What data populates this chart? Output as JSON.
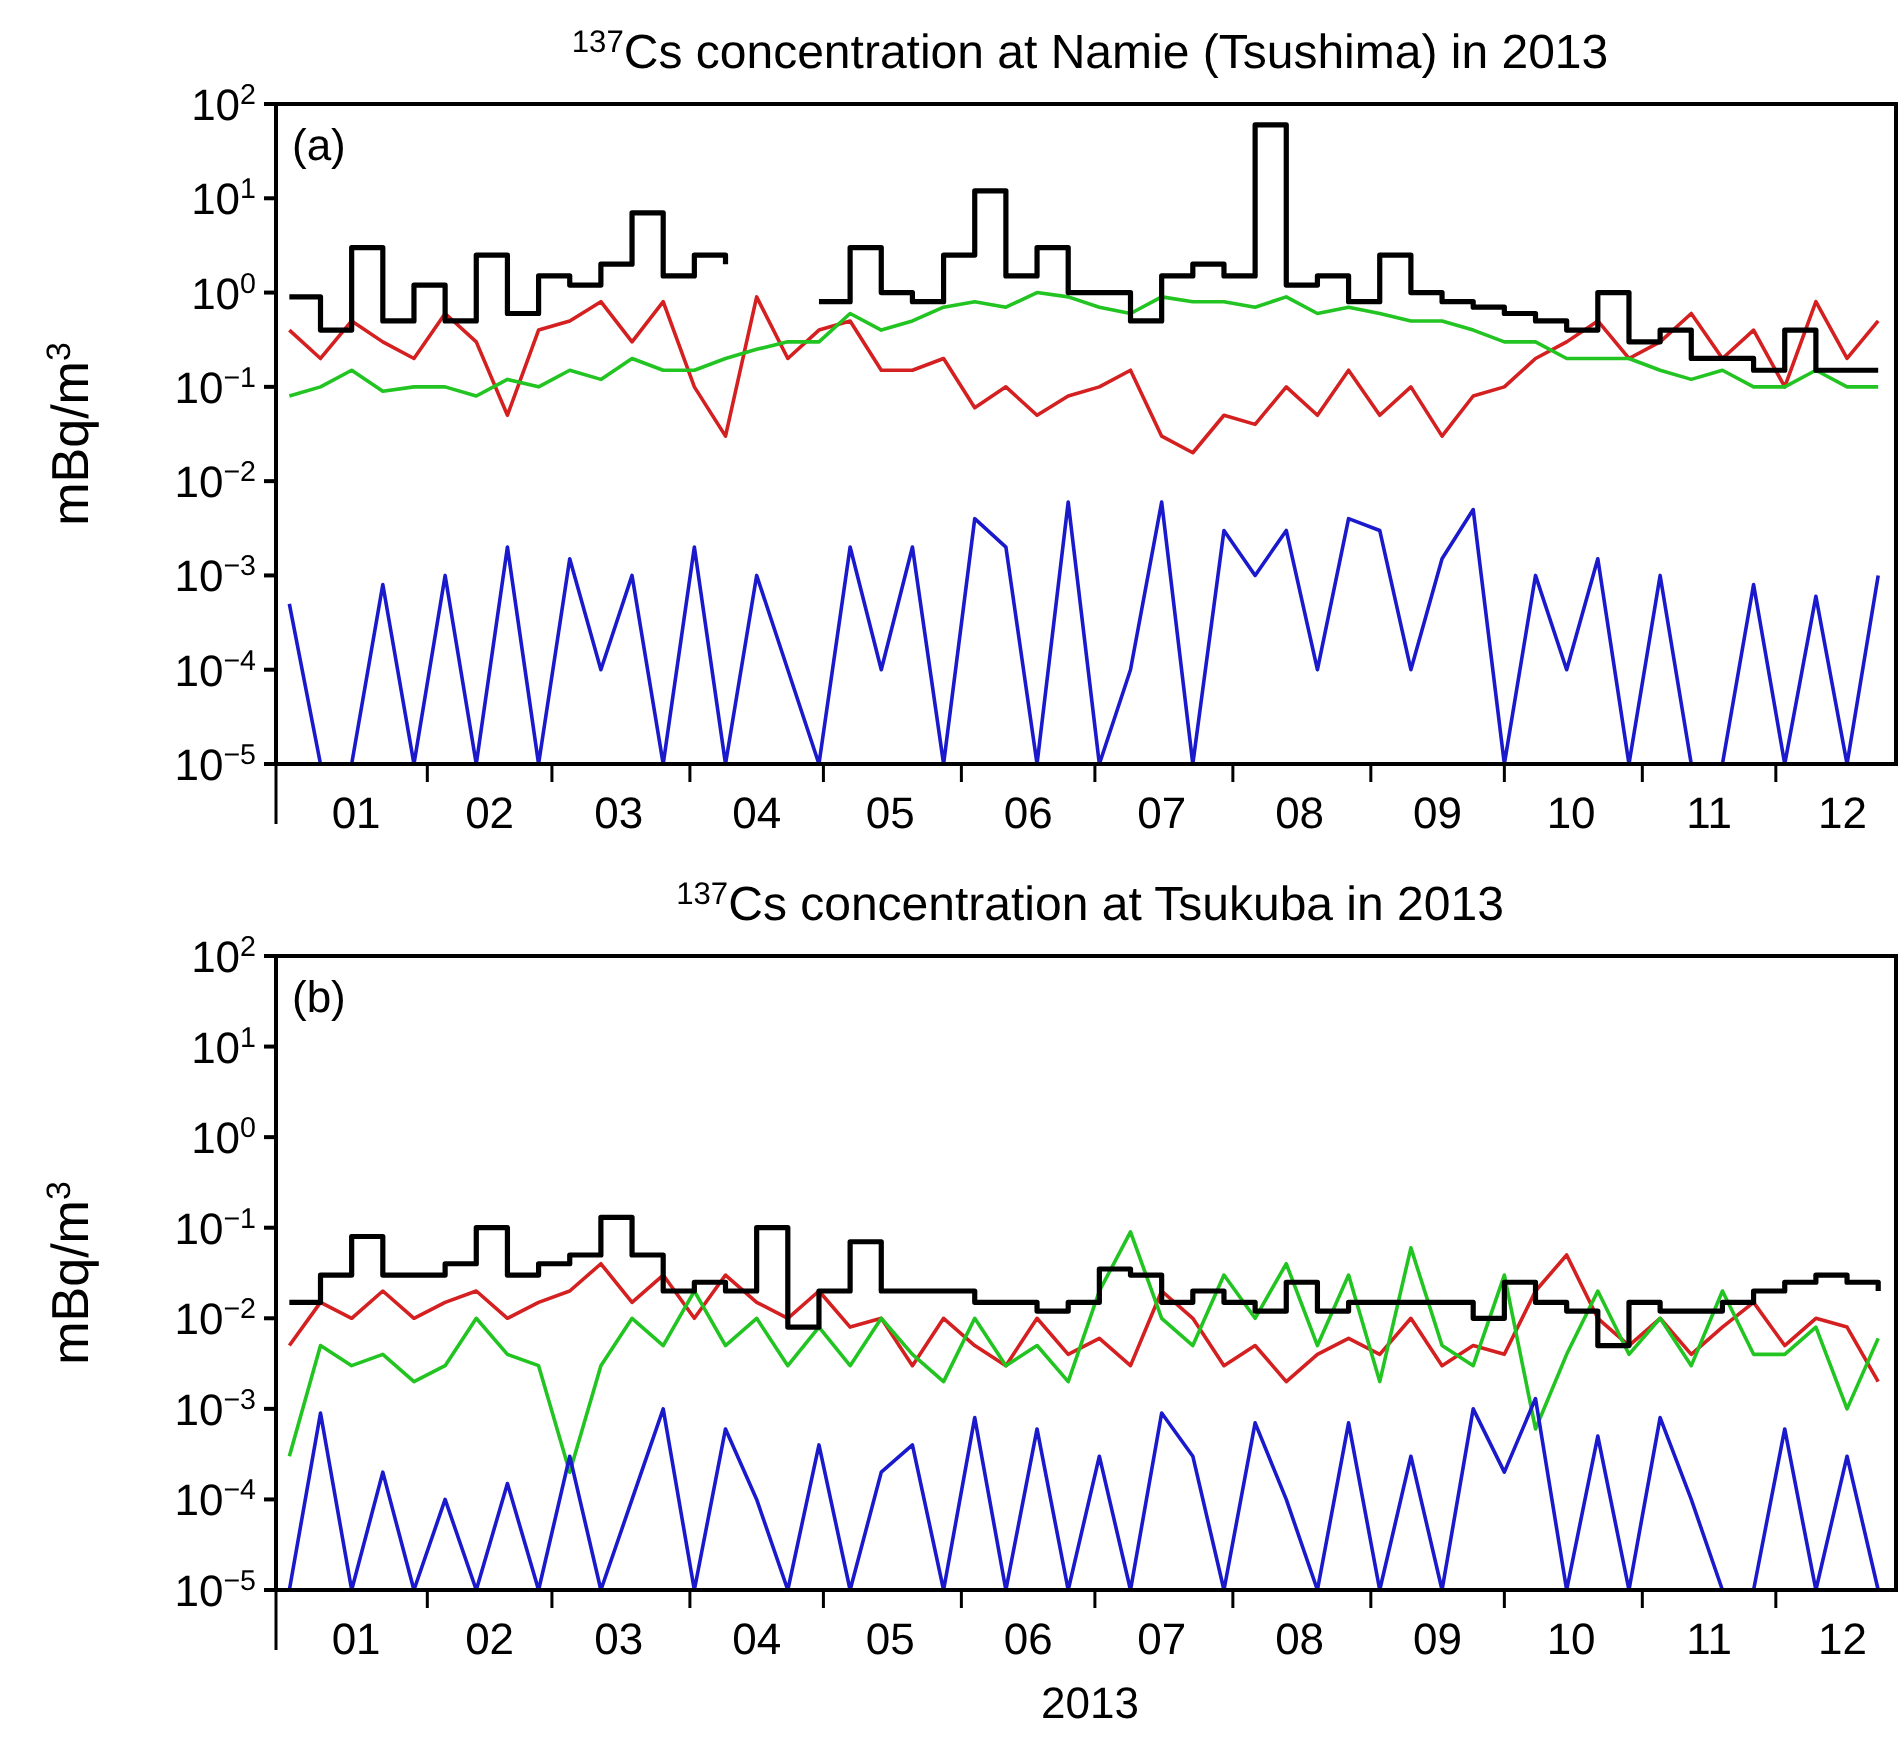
{
  "chart_data": [
    {
      "type": "line",
      "title": "$^{137}$Cs concentration at Namie (Tsushima) in 2013",
      "ylabel": "mBq/m$^{3}$",
      "annotations": [
        "(a)"
      ],
      "log": true,
      "grid": false,
      "x": [
        "2013-01-01",
        "2013-01-08",
        "2013-01-15",
        "2013-01-22",
        "2013-01-29",
        "2013-02-05",
        "2013-02-12",
        "2013-02-19",
        "2013-02-26",
        "2013-03-05",
        "2013-03-12",
        "2013-03-19",
        "2013-03-26",
        "2013-04-02",
        "2013-04-09",
        "2013-04-16",
        "2013-04-23",
        "2013-04-30",
        "2013-05-07",
        "2013-05-14",
        "2013-05-21",
        "2013-05-28",
        "2013-06-04",
        "2013-06-11",
        "2013-06-18",
        "2013-06-25",
        "2013-07-02",
        "2013-07-09",
        "2013-07-16",
        "2013-07-23",
        "2013-07-30",
        "2013-08-06",
        "2013-08-13",
        "2013-08-20",
        "2013-08-27",
        "2013-09-03",
        "2013-09-10",
        "2013-09-17",
        "2013-09-24",
        "2013-10-01",
        "2013-10-08",
        "2013-10-15",
        "2013-10-22",
        "2013-10-29",
        "2013-11-05",
        "2013-11-12",
        "2013-11-19",
        "2013-11-26",
        "2013-12-03",
        "2013-12-10",
        "2013-12-17",
        "2013-12-24"
      ],
      "xlim": [
        "2012-12-29",
        "2013-12-28"
      ],
      "xticks": [
        {
          "value": "2013-01-16",
          "label": "01"
        },
        {
          "value": "2013-02-01",
          "label": null
        },
        {
          "value": "2013-02-15",
          "label": "02"
        },
        {
          "value": "2013-03-01",
          "label": null
        },
        {
          "value": "2013-03-16",
          "label": "03"
        },
        {
          "value": "2013-04-01",
          "label": null
        },
        {
          "value": "2013-04-16",
          "label": "04"
        },
        {
          "value": "2013-05-01",
          "label": null
        },
        {
          "value": "2013-05-16",
          "label": "05"
        },
        {
          "value": "2013-06-01",
          "label": null
        },
        {
          "value": "2013-06-16",
          "label": "06"
        },
        {
          "value": "2013-07-01",
          "label": null
        },
        {
          "value": "2013-07-16",
          "label": "07"
        },
        {
          "value": "2013-08-01",
          "label": null
        },
        {
          "value": "2013-08-16",
          "label": "08"
        },
        {
          "value": "2013-09-01",
          "label": null
        },
        {
          "value": "2013-09-16",
          "label": "09"
        },
        {
          "value": "2013-10-01",
          "label": null
        },
        {
          "value": "2013-10-16",
          "label": "10"
        },
        {
          "value": "2013-11-01",
          "label": null
        },
        {
          "value": "2013-11-16",
          "label": "11"
        },
        {
          "value": "2013-12-01",
          "label": null
        },
        {
          "value": "2013-12-16",
          "label": "12"
        }
      ],
      "ylim": [
        1e-05,
        100
      ],
      "yticks": [
        {
          "value": 1e-05,
          "label": "10$^{−5}$"
        },
        {
          "value": 0.0001,
          "label": "10$^{−4}$"
        },
        {
          "value": 0.001,
          "label": "10$^{−3}$"
        },
        {
          "value": 0.01,
          "label": "10$^{−2}$"
        },
        {
          "value": 0.1,
          "label": "10$^{−1}$"
        },
        {
          "value": 1,
          "label": "10$^{0}$"
        },
        {
          "value": 10,
          "label": "10$^{1}$"
        },
        {
          "value": 100,
          "label": "10$^{2}$"
        }
      ],
      "series": [
        {
          "type": "line",
          "color": "#d42020",
          "values": [
            0.4,
            0.2,
            0.5,
            0.3,
            0.2,
            0.6,
            0.3,
            0.05,
            0.4,
            0.5,
            0.8,
            0.3,
            0.8,
            0.1,
            0.03,
            0.9,
            0.2,
            0.4,
            0.5,
            0.15,
            0.15,
            0.2,
            0.06,
            0.1,
            0.05,
            0.08,
            0.1,
            0.15,
            0.03,
            0.02,
            0.05,
            0.04,
            0.1,
            0.05,
            0.15,
            0.05,
            0.1,
            0.03,
            0.08,
            0.1,
            0.2,
            0.3,
            0.5,
            0.2,
            0.3,
            0.6,
            0.2,
            0.4,
            0.1,
            0.8,
            0.2,
            0.5
          ]
        },
        {
          "type": "line",
          "color": "#22c422",
          "values": [
            0.08,
            0.1,
            0.15,
            0.09,
            0.1,
            0.1,
            0.08,
            0.12,
            0.1,
            0.15,
            0.12,
            0.2,
            0.15,
            0.15,
            0.2,
            0.25,
            0.3,
            0.3,
            0.6,
            0.4,
            0.5,
            0.7,
            0.8,
            0.7,
            1,
            0.9,
            0.7,
            0.6,
            0.9,
            0.8,
            0.8,
            0.7,
            0.9,
            0.6,
            0.7,
            0.6,
            0.5,
            0.5,
            0.4,
            0.3,
            0.3,
            0.2,
            0.2,
            0.2,
            0.15,
            0.12,
            0.15,
            0.1,
            0.1,
            0.15,
            0.1,
            0.1
          ]
        },
        {
          "type": "line",
          "color": "#1a1acc",
          "values": [
            0.0005,
            1e-05,
            1e-05,
            0.0008,
            1e-05,
            0.001,
            1e-05,
            0.002,
            1e-05,
            0.0015,
            0.0001,
            0.001,
            1e-05,
            0.002,
            1e-05,
            0.001,
            0.0001,
            1e-05,
            0.002,
            0.0001,
            0.002,
            1e-05,
            0.004,
            0.002,
            1e-05,
            0.006,
            1e-05,
            0.0001,
            0.006,
            1e-05,
            0.003,
            0.001,
            0.003,
            0.0001,
            0.004,
            0.003,
            0.0001,
            0.0015,
            0.005,
            1e-05,
            0.001,
            0.0001,
            0.0015,
            1e-05,
            0.001,
            1e-05,
            1e-05,
            0.0008,
            1e-05,
            0.0006,
            1e-05,
            0.001
          ]
        },
        {
          "type": "step",
          "color": "#000000",
          "values": [
            0.9,
            0.4,
            3,
            0.5,
            1.2,
            0.5,
            2.5,
            0.6,
            1.5,
            1.2,
            2,
            7,
            1.5,
            2.5,
            2,
            null,
            null,
            0.8,
            3,
            1,
            0.8,
            2.5,
            12,
            1.5,
            3,
            1,
            1,
            0.5,
            1.5,
            2,
            1.5,
            60,
            1.2,
            1.5,
            0.8,
            2.5,
            1,
            0.8,
            0.7,
            0.6,
            0.5,
            0.4,
            1,
            0.3,
            0.4,
            0.2,
            0.2,
            0.15,
            0.4,
            0.15,
            0.15,
            0.15
          ]
        }
      ]
    },
    {
      "type": "line",
      "title": "$^{137}$Cs concentration at Tsukuba in 2013",
      "xlabel": "2013",
      "ylabel": "mBq/m$^{3}$",
      "annotations": [
        "(b)"
      ],
      "log": true,
      "grid": false,
      "x": [
        "2013-01-01",
        "2013-01-08",
        "2013-01-15",
        "2013-01-22",
        "2013-01-29",
        "2013-02-05",
        "2013-02-12",
        "2013-02-19",
        "2013-02-26",
        "2013-03-05",
        "2013-03-12",
        "2013-03-19",
        "2013-03-26",
        "2013-04-02",
        "2013-04-09",
        "2013-04-16",
        "2013-04-23",
        "2013-04-30",
        "2013-05-07",
        "2013-05-14",
        "2013-05-21",
        "2013-05-28",
        "2013-06-04",
        "2013-06-11",
        "2013-06-18",
        "2013-06-25",
        "2013-07-02",
        "2013-07-09",
        "2013-07-16",
        "2013-07-23",
        "2013-07-30",
        "2013-08-06",
        "2013-08-13",
        "2013-08-20",
        "2013-08-27",
        "2013-09-03",
        "2013-09-10",
        "2013-09-17",
        "2013-09-24",
        "2013-10-01",
        "2013-10-08",
        "2013-10-15",
        "2013-10-22",
        "2013-10-29",
        "2013-11-05",
        "2013-11-12",
        "2013-11-19",
        "2013-11-26",
        "2013-12-03",
        "2013-12-10",
        "2013-12-17",
        "2013-12-24"
      ],
      "xlim": [
        "2012-12-29",
        "2013-12-28"
      ],
      "xticks": [
        {
          "value": "2013-01-16",
          "label": "01"
        },
        {
          "value": "2013-02-01",
          "label": null
        },
        {
          "value": "2013-02-15",
          "label": "02"
        },
        {
          "value": "2013-03-01",
          "label": null
        },
        {
          "value": "2013-03-16",
          "label": "03"
        },
        {
          "value": "2013-04-01",
          "label": null
        },
        {
          "value": "2013-04-16",
          "label": "04"
        },
        {
          "value": "2013-05-01",
          "label": null
        },
        {
          "value": "2013-05-16",
          "label": "05"
        },
        {
          "value": "2013-06-01",
          "label": null
        },
        {
          "value": "2013-06-16",
          "label": "06"
        },
        {
          "value": "2013-07-01",
          "label": null
        },
        {
          "value": "2013-07-16",
          "label": "07"
        },
        {
          "value": "2013-08-01",
          "label": null
        },
        {
          "value": "2013-08-16",
          "label": "08"
        },
        {
          "value": "2013-09-01",
          "label": null
        },
        {
          "value": "2013-09-16",
          "label": "09"
        },
        {
          "value": "2013-10-01",
          "label": null
        },
        {
          "value": "2013-10-16",
          "label": "10"
        },
        {
          "value": "2013-11-01",
          "label": null
        },
        {
          "value": "2013-11-16",
          "label": "11"
        },
        {
          "value": "2013-12-01",
          "label": null
        },
        {
          "value": "2013-12-16",
          "label": "12"
        }
      ],
      "ylim": [
        1e-05,
        100
      ],
      "yticks": [
        {
          "value": 1e-05,
          "label": "10$^{−5}$"
        },
        {
          "value": 0.0001,
          "label": "10$^{−4}$"
        },
        {
          "value": 0.001,
          "label": "10$^{−3}$"
        },
        {
          "value": 0.01,
          "label": "10$^{−2}$"
        },
        {
          "value": 0.1,
          "label": "10$^{−1}$"
        },
        {
          "value": 1,
          "label": "10$^{0}$"
        },
        {
          "value": 10,
          "label": "10$^{1}$"
        },
        {
          "value": 100,
          "label": "10$^{2}$"
        }
      ],
      "series": [
        {
          "type": "line",
          "color": "#d42020",
          "values": [
            0.005,
            0.015,
            0.01,
            0.02,
            0.01,
            0.015,
            0.02,
            0.01,
            0.015,
            0.02,
            0.04,
            0.015,
            0.03,
            0.01,
            0.03,
            0.015,
            0.01,
            0.02,
            0.008,
            0.01,
            0.003,
            0.01,
            0.005,
            0.003,
            0.01,
            0.004,
            0.006,
            0.003,
            0.02,
            0.01,
            0.003,
            0.005,
            0.002,
            0.004,
            0.006,
            0.004,
            0.01,
            0.003,
            0.005,
            0.004,
            0.02,
            0.05,
            0.01,
            0.005,
            0.01,
            0.004,
            0.008,
            0.015,
            0.005,
            0.01,
            0.008,
            0.002
          ]
        },
        {
          "type": "line",
          "color": "#22c422",
          "values": [
            0.0003,
            0.005,
            0.003,
            0.004,
            0.002,
            0.003,
            0.01,
            0.004,
            0.003,
            0.0002,
            0.003,
            0.01,
            0.005,
            0.02,
            0.005,
            0.01,
            0.003,
            0.008,
            0.003,
            0.01,
            0.004,
            0.002,
            0.01,
            0.003,
            0.005,
            0.002,
            0.02,
            0.09,
            0.01,
            0.005,
            0.03,
            0.01,
            0.04,
            0.005,
            0.03,
            0.002,
            0.06,
            0.005,
            0.003,
            0.03,
            0.0006,
            0.004,
            0.02,
            0.004,
            0.01,
            0.003,
            0.02,
            0.004,
            0.004,
            0.008,
            0.001,
            0.006
          ]
        },
        {
          "type": "line",
          "color": "#1a1acc",
          "values": [
            1e-05,
            0.0009,
            1e-05,
            0.0002,
            1e-05,
            0.0001,
            1e-05,
            0.00015,
            1e-05,
            0.0003,
            1e-05,
            0.0001,
            0.001,
            1e-05,
            0.0006,
            0.0001,
            1e-05,
            0.0004,
            1e-05,
            0.0002,
            0.0004,
            1e-05,
            0.0008,
            1e-05,
            0.0006,
            1e-05,
            0.0003,
            1e-05,
            0.0009,
            0.0003,
            1e-05,
            0.0007,
            0.0001,
            1e-05,
            0.0007,
            1e-05,
            0.0003,
            1e-05,
            0.001,
            0.0002,
            0.0013,
            1e-05,
            0.0005,
            1e-05,
            0.0008,
            0.0001,
            1e-05,
            1e-05,
            0.0006,
            1e-05,
            0.0003,
            1e-05
          ]
        },
        {
          "type": "step",
          "color": "#000000",
          "values": [
            0.015,
            0.03,
            0.08,
            0.03,
            0.03,
            0.04,
            0.1,
            0.03,
            0.04,
            0.05,
            0.13,
            0.05,
            0.02,
            0.025,
            0.02,
            0.1,
            0.008,
            0.02,
            0.07,
            0.02,
            0.02,
            0.02,
            0.015,
            0.015,
            0.012,
            0.015,
            0.035,
            0.03,
            0.015,
            0.02,
            0.015,
            0.012,
            0.025,
            0.012,
            0.015,
            0.015,
            0.015,
            0.015,
            0.01,
            0.025,
            0.015,
            0.012,
            0.005,
            0.015,
            0.012,
            0.012,
            0.015,
            0.02,
            0.025,
            0.03,
            0.025,
            0.02
          ]
        }
      ]
    }
  ]
}
